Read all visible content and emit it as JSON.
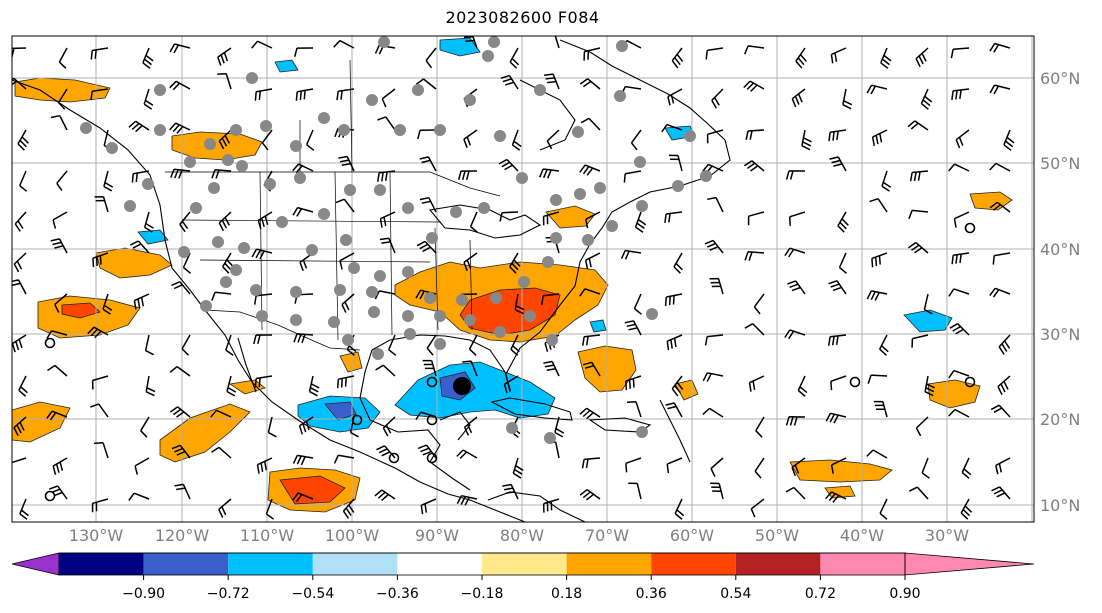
{
  "title": "2023082600 F084",
  "latitude_labels": [
    "60°N",
    "50°N",
    "40°N",
    "30°N",
    "20°N",
    "10°N"
  ],
  "longitude_labels": [
    "130°W",
    "120°W",
    "110°W",
    "100°W",
    "90°W",
    "80°W",
    "70°W",
    "60°W",
    "50°W",
    "40°W",
    "30°W"
  ],
  "colorbar": {
    "tick_labels": [
      "−0.90",
      "−0.72",
      "−0.54",
      "−0.36",
      "−0.18",
      "0.18",
      "0.36",
      "0.54",
      "0.72",
      "0.90"
    ],
    "colors": [
      "#9932cc",
      "#000080",
      "#3a5fcd",
      "#00bfff",
      "#b0e0f8",
      "#ffffff",
      "#ffe98a",
      "#ffa500",
      "#ff4500",
      "#b22222",
      "#ff88b0"
    ]
  }
}
